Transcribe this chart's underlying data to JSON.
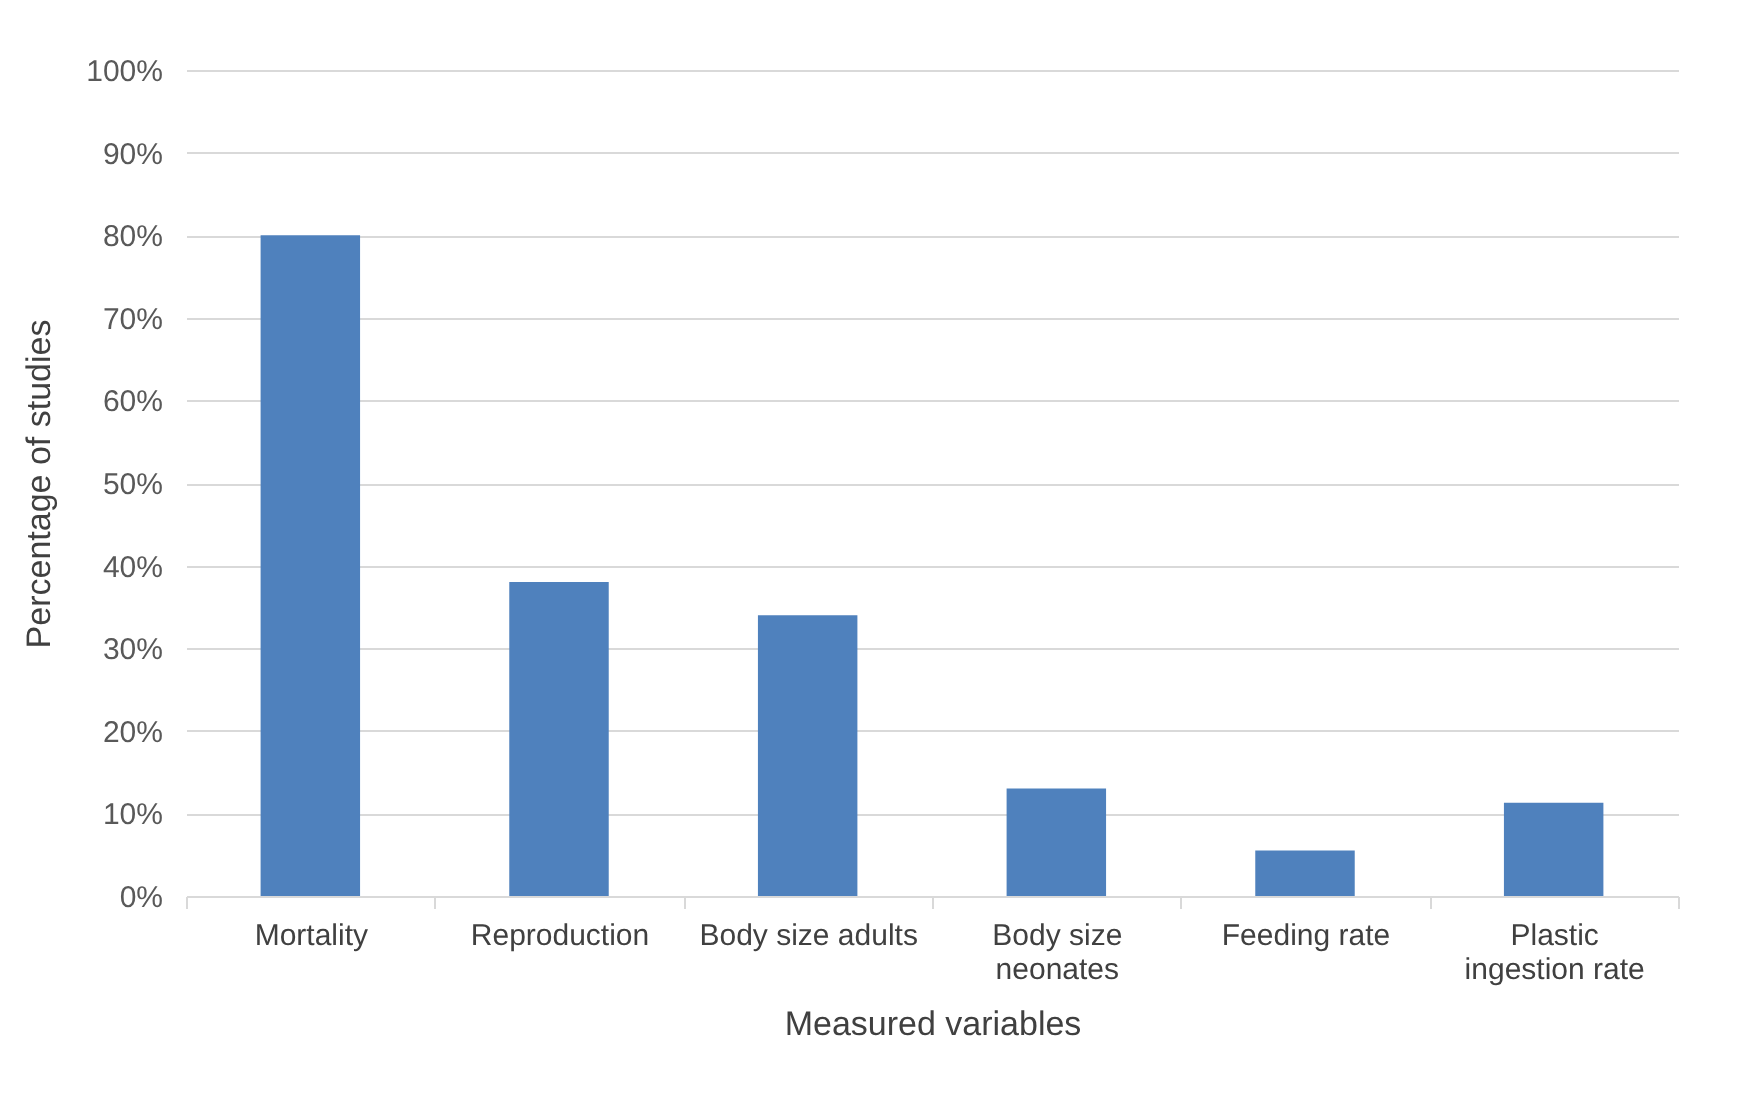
{
  "chart_data": {
    "type": "bar",
    "xlabel": "Measured variables",
    "ylabel": "Percentage of studies",
    "categories": [
      "Mortality",
      "Reproduction",
      "Body size adults",
      "Body size neonates",
      "Feeding rate",
      "Plastic ingestion rate"
    ],
    "values": [
      80,
      38,
      34,
      13,
      5.5,
      11.3
    ],
    "color": "#4f81bd",
    "ylim": [
      0,
      100
    ],
    "yticks": [
      {
        "value": 0,
        "label": "0%"
      },
      {
        "value": 10,
        "label": "10%"
      },
      {
        "value": 20,
        "label": "20%"
      },
      {
        "value": 30,
        "label": "30%"
      },
      {
        "value": 40,
        "label": "40%"
      },
      {
        "value": 50,
        "label": "50%"
      },
      {
        "value": 60,
        "label": "60%"
      },
      {
        "value": 70,
        "label": "70%"
      },
      {
        "value": 80,
        "label": "80%"
      },
      {
        "value": 90,
        "label": "90%"
      },
      {
        "value": 100,
        "label": "100%"
      }
    ],
    "grid": "y"
  }
}
